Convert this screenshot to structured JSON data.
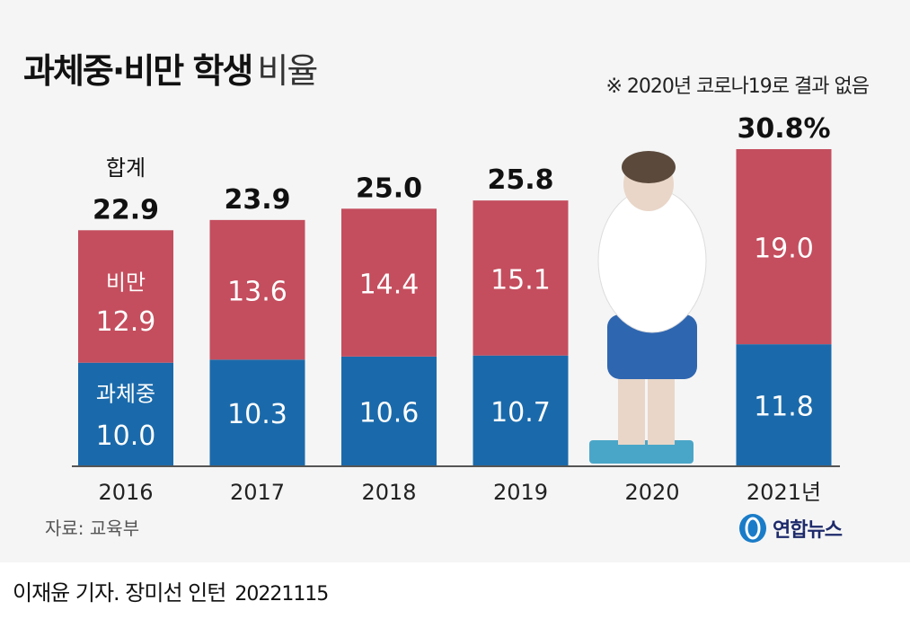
{
  "title": {
    "bold": "과체중·비만 학생",
    "light": "비율"
  },
  "note": "※ 2020년 코로나19로 결과 없음",
  "source": "자료: 교육부",
  "credit": {
    "author": "이재윤 기자. 장미선 인턴",
    "date": "20221115"
  },
  "logo": "연합뉴스",
  "chart_data": {
    "type": "bar",
    "stacked": true,
    "categories": [
      "2016",
      "2017",
      "2018",
      "2019",
      "2020",
      "2021년"
    ],
    "series": [
      {
        "name": "과체중",
        "color": "#1a6aab",
        "values": [
          10.0,
          10.3,
          10.6,
          10.7,
          null,
          11.8
        ]
      },
      {
        "name": "비만",
        "color": "#c44e5e",
        "values": [
          12.9,
          13.6,
          14.4,
          15.1,
          null,
          19.0
        ]
      }
    ],
    "totals": [
      "22.9",
      "23.9",
      "25.0",
      "25.8",
      null,
      "30.8%"
    ],
    "total_label": "합계",
    "ylim": [
      0,
      34
    ],
    "grid": false
  }
}
